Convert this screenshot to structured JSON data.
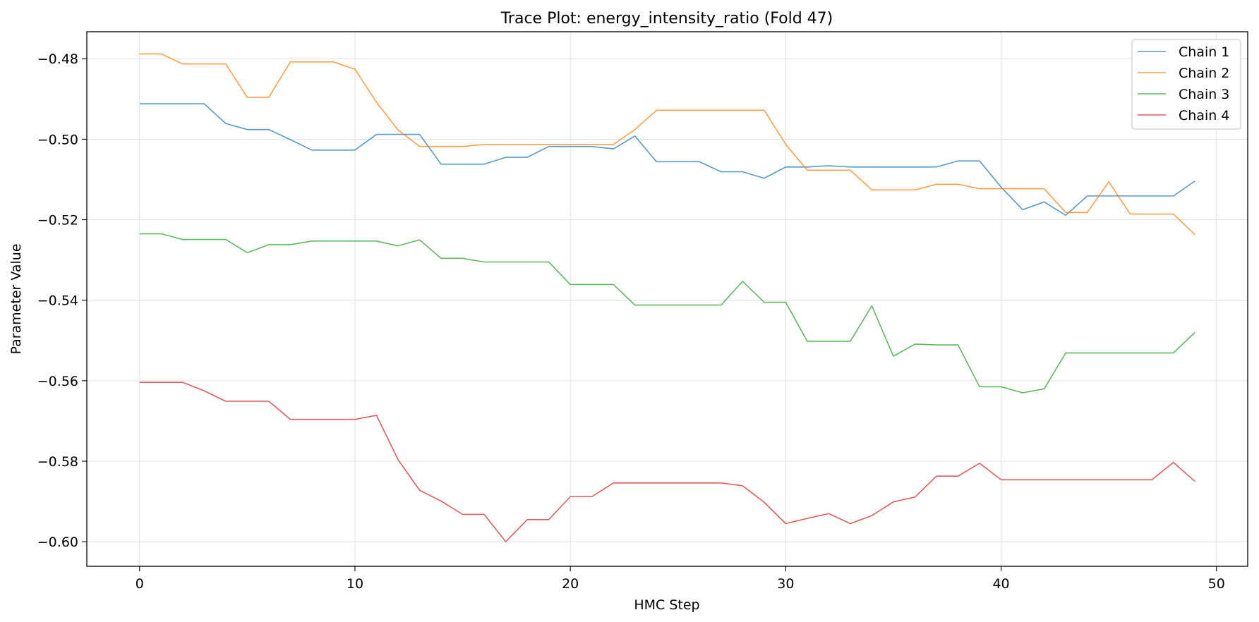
{
  "chart_data": {
    "type": "line",
    "title": "Trace Plot: energy_intensity_ratio (Fold 47)",
    "xlabel": "HMC Step",
    "ylabel": "Parameter Value",
    "xlim": [
      -2.45,
      51.45
    ],
    "ylim": [
      -0.6061,
      -0.4733
    ],
    "xticks": [
      0,
      10,
      20,
      30,
      40,
      50
    ],
    "xtick_labels": [
      "0",
      "10",
      "20",
      "30",
      "40",
      "50"
    ],
    "yticks": [
      -0.48,
      -0.5,
      -0.52,
      -0.54,
      -0.56,
      -0.58,
      -0.6
    ],
    "ytick_labels": [
      "−0.48",
      "−0.50",
      "−0.52",
      "−0.54",
      "−0.56",
      "−0.58",
      "−0.60"
    ],
    "grid": true,
    "legend_position": "top-right",
    "x": [
      0,
      1,
      2,
      3,
      4,
      5,
      6,
      7,
      8,
      9,
      10,
      11,
      12,
      13,
      14,
      15,
      16,
      17,
      18,
      19,
      20,
      21,
      22,
      23,
      24,
      25,
      26,
      27,
      28,
      29,
      30,
      31,
      32,
      33,
      34,
      35,
      36,
      37,
      38,
      39,
      40,
      41,
      42,
      43,
      44,
      45,
      46,
      47,
      48,
      49
    ],
    "series": [
      {
        "name": "Chain 1",
        "color": "#1f77b4",
        "values": [
          -0.4912,
          -0.4912,
          -0.4912,
          -0.4912,
          -0.4961,
          -0.4976,
          -0.4976,
          -0.5001,
          -0.5027,
          -0.5027,
          -0.5027,
          -0.4988,
          -0.4988,
          -0.4988,
          -0.5062,
          -0.5062,
          -0.5062,
          -0.5045,
          -0.5045,
          -0.5018,
          -0.5018,
          -0.5018,
          -0.5024,
          -0.4992,
          -0.5056,
          -0.5056,
          -0.5056,
          -0.5081,
          -0.5081,
          -0.5097,
          -0.5069,
          -0.5069,
          -0.5066,
          -0.5069,
          -0.5069,
          -0.5069,
          -0.5069,
          -0.5069,
          -0.5054,
          -0.5054,
          -0.5119,
          -0.5175,
          -0.5156,
          -0.5189,
          -0.5141,
          -0.5141,
          -0.5141,
          -0.5141,
          -0.5141,
          -0.5104
        ]
      },
      {
        "name": "Chain 2",
        "color": "#ff7f0e",
        "values": [
          -0.4788,
          -0.4788,
          -0.4813,
          -0.4813,
          -0.4813,
          -0.4896,
          -0.4896,
          -0.4808,
          -0.4808,
          -0.4808,
          -0.4826,
          -0.4908,
          -0.4977,
          -0.5018,
          -0.5018,
          -0.5018,
          -0.5013,
          -0.5013,
          -0.5013,
          -0.5013,
          -0.5013,
          -0.5013,
          -0.5013,
          -0.4976,
          -0.4928,
          -0.4928,
          -0.4928,
          -0.4928,
          -0.4928,
          -0.4928,
          -0.5013,
          -0.5077,
          -0.5077,
          -0.5077,
          -0.5126,
          -0.5126,
          -0.5126,
          -0.5112,
          -0.5112,
          -0.5123,
          -0.5123,
          -0.5123,
          -0.5123,
          -0.5182,
          -0.5182,
          -0.5106,
          -0.5186,
          -0.5186,
          -0.5186,
          -0.5237
        ]
      },
      {
        "name": "Chain 3",
        "color": "#2ca02c",
        "values": [
          -0.5235,
          -0.5235,
          -0.5249,
          -0.5249,
          -0.5249,
          -0.5282,
          -0.5262,
          -0.5262,
          -0.5253,
          -0.5253,
          -0.5253,
          -0.5253,
          -0.5265,
          -0.525,
          -0.5296,
          -0.5296,
          -0.5305,
          -0.5305,
          -0.5305,
          -0.5305,
          -0.5361,
          -0.5361,
          -0.5361,
          -0.5412,
          -0.5412,
          -0.5412,
          -0.5412,
          -0.5412,
          -0.5353,
          -0.5405,
          -0.5405,
          -0.5502,
          -0.5502,
          -0.5502,
          -0.5414,
          -0.5539,
          -0.5509,
          -0.5511,
          -0.5511,
          -0.5615,
          -0.5615,
          -0.563,
          -0.562,
          -0.5531,
          -0.5531,
          -0.5531,
          -0.5531,
          -0.5531,
          -0.5531,
          -0.548
        ]
      },
      {
        "name": "Chain 4",
        "color": "#d62728",
        "values": [
          -0.5604,
          -0.5604,
          -0.5604,
          -0.5625,
          -0.5651,
          -0.5651,
          -0.5651,
          -0.5696,
          -0.5696,
          -0.5696,
          -0.5696,
          -0.5686,
          -0.5796,
          -0.5872,
          -0.5899,
          -0.5932,
          -0.5932,
          -0.6,
          -0.5945,
          -0.5945,
          -0.5888,
          -0.5888,
          -0.5854,
          -0.5854,
          -0.5854,
          -0.5854,
          -0.5854,
          -0.5854,
          -0.5861,
          -0.5902,
          -0.5955,
          -0.5942,
          -0.593,
          -0.5955,
          -0.5935,
          -0.5901,
          -0.5889,
          -0.5837,
          -0.5837,
          -0.5805,
          -0.5846,
          -0.5846,
          -0.5846,
          -0.5846,
          -0.5846,
          -0.5846,
          -0.5846,
          -0.5846,
          -0.5803,
          -0.585
        ]
      }
    ]
  }
}
